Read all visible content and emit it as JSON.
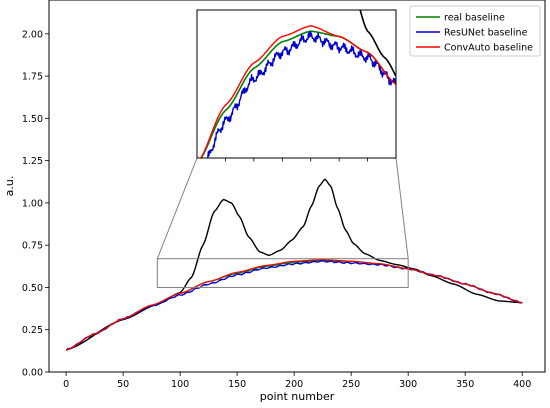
{
  "chart_data": {
    "type": "line",
    "xlabel": "point number",
    "ylabel": "a.u.",
    "xlim": [
      -15,
      420
    ],
    "ylim": [
      0.0,
      2.2
    ],
    "xticks": [
      0,
      50,
      100,
      150,
      200,
      250,
      300,
      350,
      400
    ],
    "yticks": [
      0.0,
      0.25,
      0.5,
      0.75,
      1.0,
      1.25,
      1.5,
      1.75,
      2.0
    ],
    "xtick_labels": [
      "0",
      "50",
      "100",
      "150",
      "200",
      "250",
      "300",
      "350",
      "400"
    ],
    "ytick_labels": [
      "0.00",
      "0.25",
      "0.50",
      "0.75",
      "1.00",
      "1.25",
      "1.50",
      "1.75",
      "2.00"
    ],
    "grid": false,
    "legend_position": "top-right",
    "colors": {
      "spectrum": "#000000",
      "real": "#008000",
      "resunet": "#0000cc",
      "convauto": "#ff0000",
      "inset_box": "#808080"
    },
    "spectrum_signal": {
      "x": [
        0,
        50,
        80,
        100,
        110,
        120,
        130,
        138,
        145,
        152,
        160,
        170,
        178,
        188,
        198,
        208,
        215,
        222,
        227,
        232,
        238,
        245,
        252,
        262,
        275,
        290,
        305,
        320,
        340,
        360,
        380,
        400
      ],
      "y": [
        0.13,
        0.31,
        0.4,
        0.47,
        0.56,
        0.75,
        0.95,
        1.02,
        1.0,
        0.92,
        0.8,
        0.71,
        0.69,
        0.72,
        0.78,
        0.86,
        0.98,
        1.1,
        1.14,
        1.1,
        0.97,
        0.84,
        0.76,
        0.7,
        0.66,
        0.635,
        0.61,
        0.57,
        0.52,
        0.46,
        0.42,
        0.41
      ]
    },
    "series": [
      {
        "name": "real baseline",
        "x": [
          0,
          25,
          50,
          75,
          100,
          125,
          150,
          175,
          200,
          225,
          250,
          275,
          300,
          325,
          350,
          375,
          400
        ],
        "y": [
          0.13,
          0.225,
          0.315,
          0.395,
          0.465,
          0.535,
          0.585,
          0.625,
          0.65,
          0.66,
          0.655,
          0.64,
          0.61,
          0.57,
          0.52,
          0.465,
          0.41
        ]
      },
      {
        "name": "ResUNet baseline",
        "x": [
          0,
          25,
          50,
          75,
          100,
          125,
          150,
          175,
          200,
          225,
          250,
          275,
          300,
          325,
          350,
          375,
          400
        ],
        "y": [
          0.13,
          0.225,
          0.315,
          0.39,
          0.455,
          0.52,
          0.575,
          0.615,
          0.64,
          0.655,
          0.645,
          0.635,
          0.61,
          0.57,
          0.52,
          0.465,
          0.41
        ]
      },
      {
        "name": "ConvAuto baseline",
        "x": [
          0,
          25,
          50,
          75,
          100,
          125,
          150,
          175,
          200,
          225,
          250,
          275,
          300,
          325,
          350,
          375,
          400
        ],
        "y": [
          0.13,
          0.225,
          0.315,
          0.395,
          0.465,
          0.535,
          0.59,
          0.63,
          0.655,
          0.665,
          0.655,
          0.64,
          0.61,
          0.57,
          0.52,
          0.465,
          0.41
        ]
      }
    ],
    "zoom_region": {
      "xlim": [
        80,
        300
      ],
      "ylim": [
        0.5,
        0.67
      ]
    }
  }
}
